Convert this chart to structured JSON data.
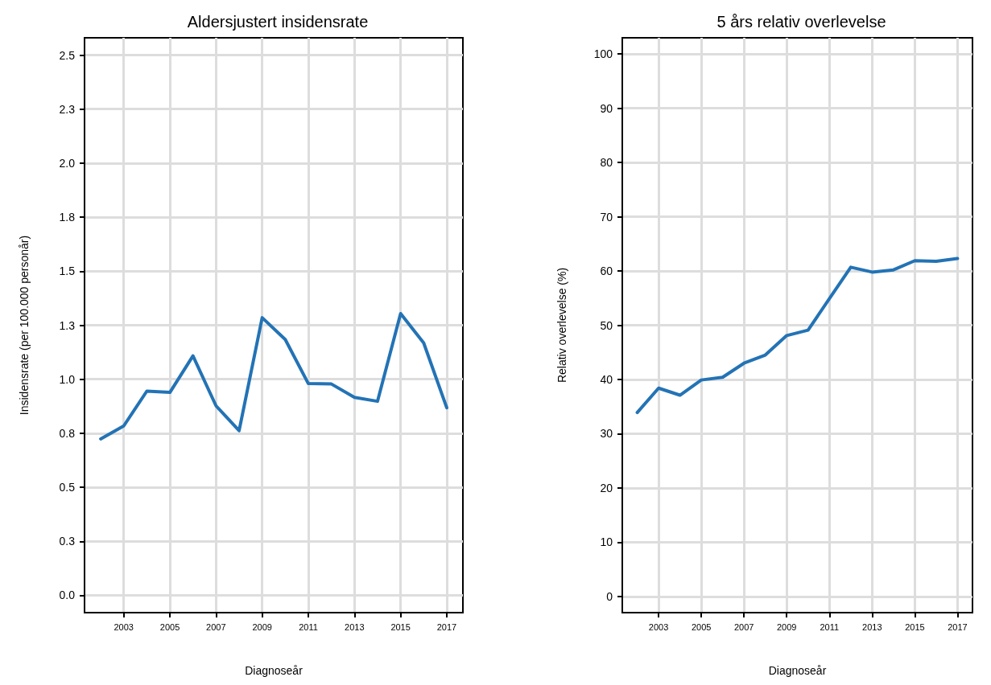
{
  "chart_data": [
    {
      "type": "line",
      "title": "Aldersjustert insidensrate",
      "xlabel": "Diagnoseår",
      "ylabel": "Insidensrate (per 100.000 personår)",
      "x": [
        2002,
        2003,
        2004,
        2005,
        2006,
        2007,
        2008,
        2009,
        2010,
        2011,
        2012,
        2013,
        2014,
        2015,
        2016,
        2017
      ],
      "series": [
        {
          "color": "#2373b5",
          "values": [
            0.724,
            0.784,
            0.945,
            0.939,
            1.108,
            0.877,
            0.762,
            1.285,
            1.184,
            0.98,
            0.978,
            0.916,
            0.898,
            1.304,
            1.168,
            0.868
          ]
        }
      ],
      "xlim": [
        2001.3,
        2017.7
      ],
      "xticks": [
        2003,
        2005,
        2007,
        2009,
        2011,
        2013,
        2015,
        2017
      ],
      "ylim": [
        -0.08,
        2.58
      ],
      "yticks": [
        {
          "value": 0,
          "label": "0.0"
        },
        {
          "value": 0.25,
          "label": "0.3"
        },
        {
          "value": 0.5,
          "label": "0.5"
        },
        {
          "value": 0.75,
          "label": "0.8"
        },
        {
          "value": 1,
          "label": "1.0"
        },
        {
          "value": 1.25,
          "label": "1.3"
        },
        {
          "value": 1.5,
          "label": "1.5"
        },
        {
          "value": 1.75,
          "label": "1.8"
        },
        {
          "value": 2,
          "label": "2.0"
        },
        {
          "value": 2.25,
          "label": "2.3"
        },
        {
          "value": 2.5,
          "label": "2.5"
        }
      ],
      "grid": true,
      "marker": "none",
      "line_style": "solid"
    },
    {
      "type": "line",
      "title": "5 års relativ overlevelse",
      "xlabel": "Diagnoseår",
      "ylabel": "Relativ overlevelse (%)",
      "x": [
        2002,
        2003,
        2004,
        2005,
        2006,
        2007,
        2008,
        2009,
        2010,
        2011,
        2012,
        2013,
        2014,
        2015,
        2016,
        2017
      ],
      "series": [
        {
          "color": "#2373b5",
          "values": [
            33.9,
            38.4,
            37.1,
            39.9,
            40.4,
            43.0,
            44.5,
            48.1,
            49.1,
            54.9,
            60.7,
            59.8,
            60.2,
            61.9,
            61.8,
            62.3
          ]
        }
      ],
      "xlim": [
        2001.3,
        2017.7
      ],
      "xticks": [
        2003,
        2005,
        2007,
        2009,
        2011,
        2013,
        2015,
        2017
      ],
      "ylim": [
        -3,
        103
      ],
      "yticks": [
        0,
        10,
        20,
        30,
        40,
        50,
        60,
        70,
        80,
        90,
        100
      ],
      "grid": true,
      "marker": "none",
      "line_style": "solid"
    }
  ]
}
